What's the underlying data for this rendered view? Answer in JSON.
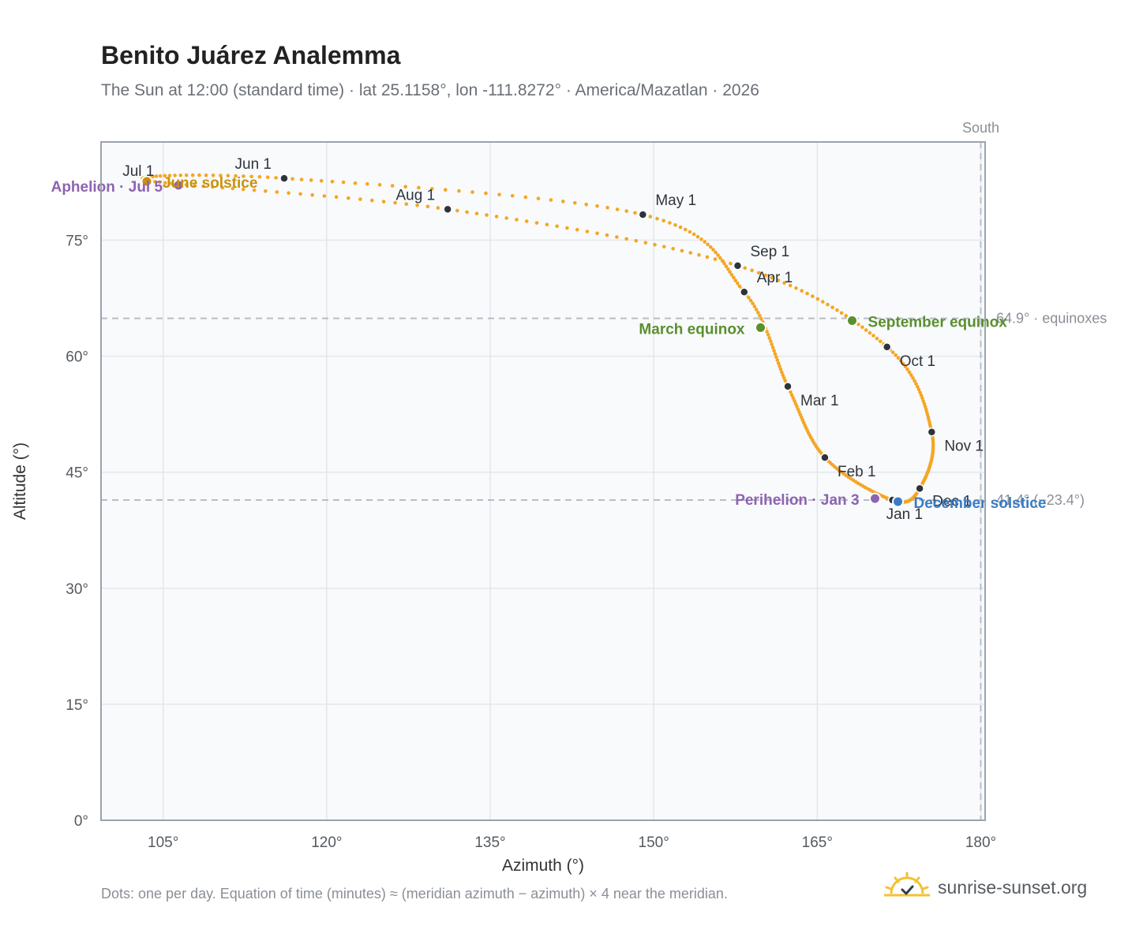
{
  "title": "Benito Juárez Analemma",
  "subtitle": "The Sun at 12:00 (standard time) · lat 25.1158°, lon -111.8272° · America/Mazatlan · 2026",
  "footnote": "Dots: one per day. Equation of time (minutes) ≈ (meridian azimuth − azimuth) × 4 near the meridian.",
  "brand": {
    "name": "sunrise-sunset.org",
    "logo_icon": "sun-logo-icon"
  },
  "colors": {
    "curve": "#f5a623",
    "month_dot": "#2f343b",
    "equinox": "#5a8f2e",
    "december_solstice": "#3a7cc4",
    "june_solstice": "#c9910e",
    "aphelion_perihelion": "#8e63b0",
    "reference_line": "#b8bec6",
    "grid": "#e3e7ec",
    "plot_bg": "#f8fafc"
  },
  "chart_data": {
    "type": "scatter",
    "xlabel": "Azimuth (°)",
    "ylabel": "Altitude (°)",
    "xlim": [
      99.3,
      180.4
    ],
    "ylim": [
      0,
      87.7
    ],
    "xticks": [
      105,
      120,
      135,
      150,
      165,
      180
    ],
    "yticks": [
      0,
      15,
      30,
      45,
      60,
      75
    ],
    "x_tick_labels": [
      "105°",
      "120°",
      "135°",
      "150°",
      "165°",
      "180°"
    ],
    "y_tick_labels": [
      "0°",
      "15°",
      "30°",
      "45°",
      "60°",
      "75°"
    ],
    "grid": true,
    "south_label": "South",
    "south_azimuth": 180,
    "reference_lines": [
      {
        "altitude": 64.9,
        "label": "64.9° · equinoxes"
      },
      {
        "altitude": 41.4,
        "label": "41.4° (−23.4°)"
      }
    ],
    "month_points": [
      {
        "label": "Jan 1",
        "azimuth": 171.9,
        "altitude": 41.4
      },
      {
        "label": "Feb 1",
        "azimuth": 165.7,
        "altitude": 46.9
      },
      {
        "label": "Mar 1",
        "azimuth": 162.3,
        "altitude": 56.1
      },
      {
        "label": "Apr 1",
        "azimuth": 158.3,
        "altitude": 68.3
      },
      {
        "label": "May 1",
        "azimuth": 149.0,
        "altitude": 78.3
      },
      {
        "label": "Jun 1",
        "azimuth": 116.1,
        "altitude": 83.0
      },
      {
        "label": "Jul 1",
        "azimuth": 103.6,
        "altitude": 82.7
      },
      {
        "label": "Aug 1",
        "azimuth": 131.1,
        "altitude": 79.0
      },
      {
        "label": "Sep 1",
        "azimuth": 157.7,
        "altitude": 71.7
      },
      {
        "label": "Oct 1",
        "azimuth": 171.4,
        "altitude": 61.2
      },
      {
        "label": "Nov 1",
        "azimuth": 175.5,
        "altitude": 50.2
      },
      {
        "label": "Dec 1",
        "azimuth": 174.4,
        "altitude": 42.9
      }
    ],
    "events": [
      {
        "label": "March equinox",
        "azimuth": 159.8,
        "altitude": 63.7,
        "color_key": "equinox"
      },
      {
        "label": "September equinox",
        "azimuth": 168.2,
        "altitude": 64.6,
        "color_key": "equinox"
      },
      {
        "label": "June solstice",
        "azimuth": 103.5,
        "altitude": 82.6,
        "color_key": "june_solstice"
      },
      {
        "label": "December solstice",
        "azimuth": 172.4,
        "altitude": 41.2,
        "color_key": "december_solstice"
      },
      {
        "label": "Perihelion · Jan 3",
        "azimuth": 170.3,
        "altitude": 41.6,
        "color_key": "aphelion_perihelion"
      },
      {
        "label": "Aphelion · Jul 5",
        "azimuth": 106.4,
        "altitude": 82.1,
        "color_key": "aphelion_perihelion"
      }
    ]
  }
}
